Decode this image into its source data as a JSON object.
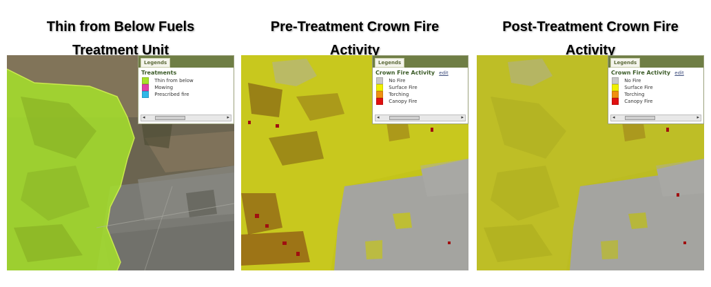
{
  "panels": [
    {
      "title_line1": "Thin from Below Fuels",
      "title_line2": "Treatment Unit",
      "legend": {
        "tab_label": "Legends",
        "title": "Treatments",
        "edit_label": "",
        "items": [
          {
            "label": "Thin from below",
            "color": "#a6e22a"
          },
          {
            "label": "Mowing",
            "color": "#e040a8"
          },
          {
            "label": "Prescribed fire",
            "color": "#30b8e8"
          }
        ]
      }
    },
    {
      "title_line1": "Pre-Treatment Crown Fire",
      "title_line2": "Activity",
      "legend": {
        "tab_label": "Legends",
        "title": "Crown Fire Activity",
        "edit_label": "edit",
        "items": [
          {
            "label": "No Fire",
            "color": "#c8c8c8"
          },
          {
            "label": "Surface Fire",
            "color": "#f0f000"
          },
          {
            "label": "Torching",
            "color": "#f09010"
          },
          {
            "label": "Canopy Fire",
            "color": "#e01010"
          }
        ]
      }
    },
    {
      "title_line1": "Post-Treatment Crown Fire",
      "title_line2": "Activity",
      "legend": {
        "tab_label": "Legends",
        "title": "Crown Fire Activity",
        "edit_label": "edit",
        "items": [
          {
            "label": "No Fire",
            "color": "#c8c8c8"
          },
          {
            "label": "Surface Fire",
            "color": "#f0f000"
          },
          {
            "label": "Torching",
            "color": "#f09010"
          },
          {
            "label": "Canopy Fire",
            "color": "#e01010"
          }
        ]
      }
    }
  ],
  "colors": {
    "legend_header": "#6f7e45",
    "treatment_overlay": "#a6e22a",
    "surface_fire_overlay": "#d8d800",
    "urban_gray": "#9a9a9a",
    "canopy_fire_overlay": "#a01010"
  }
}
